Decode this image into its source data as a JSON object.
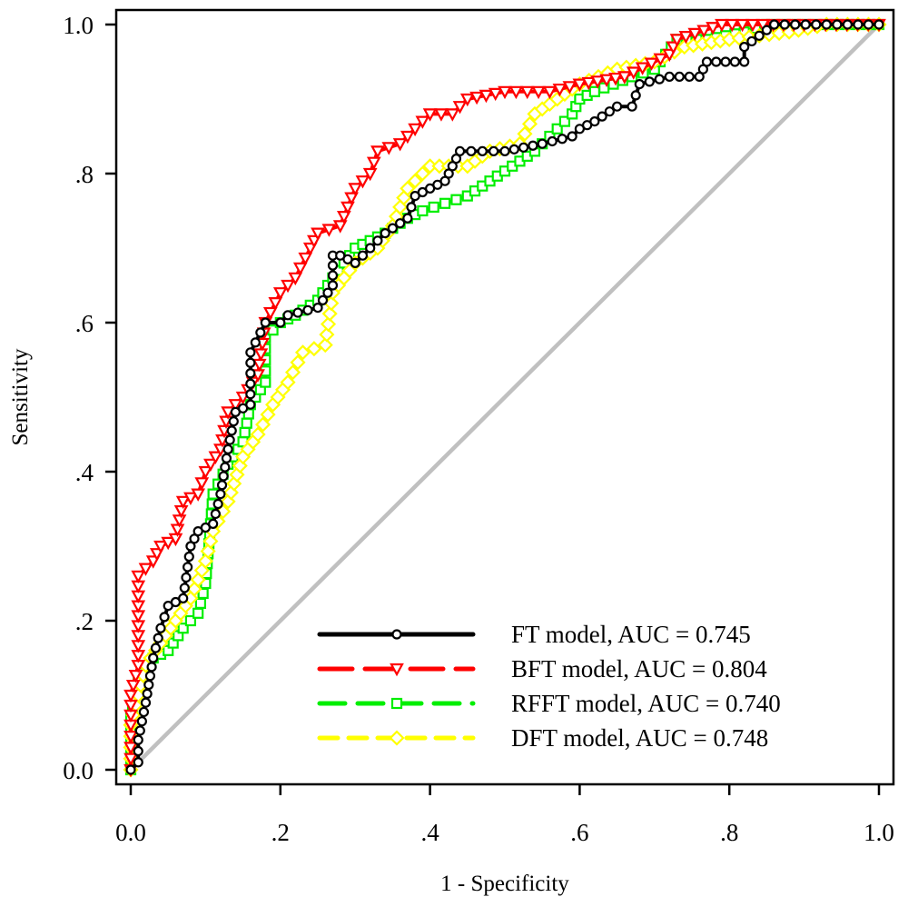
{
  "chart_data": {
    "type": "line",
    "title": "",
    "xlabel": "1 - Specificity",
    "ylabel": "Sensitivity",
    "xlim": [
      0,
      1
    ],
    "ylim": [
      0,
      1
    ],
    "grid": false,
    "legend_position": "bottom-right",
    "x_ticks": [
      {
        "value": 0.0,
        "label": "0.0"
      },
      {
        "value": 0.2,
        "label": ".2"
      },
      {
        "value": 0.4,
        "label": ".4"
      },
      {
        "value": 0.6,
        "label": ".6"
      },
      {
        "value": 0.8,
        "label": ".8"
      },
      {
        "value": 1.0,
        "label": "1.0"
      }
    ],
    "y_ticks": [
      {
        "value": 0.0,
        "label": "0.0"
      },
      {
        "value": 0.2,
        "label": ".2"
      },
      {
        "value": 0.4,
        "label": ".4"
      },
      {
        "value": 0.6,
        "label": ".6"
      },
      {
        "value": 0.8,
        "label": ".8"
      },
      {
        "value": 1.0,
        "label": "1.0"
      }
    ],
    "reference_line": {
      "name": "chance diagonal",
      "color": "#c0c0c0",
      "points": [
        [
          0,
          0
        ],
        [
          1,
          1
        ]
      ]
    },
    "series": [
      {
        "name": "FT model, AUC = 0.745",
        "auc": 0.745,
        "color": "#000000",
        "marker": "circle",
        "dash": "solid",
        "points": [
          [
            0,
            0
          ],
          [
            0.01,
            0.01
          ],
          [
            0.01,
            0.04
          ],
          [
            0.02,
            0.09
          ],
          [
            0.03,
            0.15
          ],
          [
            0.04,
            0.19
          ],
          [
            0.05,
            0.22
          ],
          [
            0.07,
            0.23
          ],
          [
            0.08,
            0.3
          ],
          [
            0.09,
            0.32
          ],
          [
            0.11,
            0.33
          ],
          [
            0.12,
            0.37
          ],
          [
            0.13,
            0.43
          ],
          [
            0.14,
            0.48
          ],
          [
            0.16,
            0.49
          ],
          [
            0.16,
            0.56
          ],
          [
            0.18,
            0.6
          ],
          [
            0.2,
            0.6
          ],
          [
            0.21,
            0.61
          ],
          [
            0.25,
            0.62
          ],
          [
            0.27,
            0.65
          ],
          [
            0.27,
            0.69
          ],
          [
            0.28,
            0.69
          ],
          [
            0.3,
            0.68
          ],
          [
            0.34,
            0.72
          ],
          [
            0.37,
            0.74
          ],
          [
            0.38,
            0.77
          ],
          [
            0.4,
            0.78
          ],
          [
            0.42,
            0.79
          ],
          [
            0.43,
            0.81
          ],
          [
            0.44,
            0.83
          ],
          [
            0.5,
            0.83
          ],
          [
            0.55,
            0.84
          ],
          [
            0.59,
            0.85
          ],
          [
            0.6,
            0.86
          ],
          [
            0.62,
            0.87
          ],
          [
            0.65,
            0.89
          ],
          [
            0.67,
            0.89
          ],
          [
            0.68,
            0.92
          ],
          [
            0.72,
            0.93
          ],
          [
            0.76,
            0.93
          ],
          [
            0.77,
            0.95
          ],
          [
            0.82,
            0.95
          ],
          [
            0.82,
            0.97
          ],
          [
            0.86,
            1.0
          ],
          [
            1,
            1
          ]
        ]
      },
      {
        "name": "BFT model, AUC = 0.804",
        "auc": 0.804,
        "color": "#ff0000",
        "marker": "triangle-down",
        "dash": "long-dash",
        "points": [
          [
            0,
            0
          ],
          [
            0,
            0.06
          ],
          [
            0,
            0.1
          ],
          [
            0.01,
            0.14
          ],
          [
            0.01,
            0.26
          ],
          [
            0.02,
            0.27
          ],
          [
            0.03,
            0.28
          ],
          [
            0.04,
            0.3
          ],
          [
            0.06,
            0.31
          ],
          [
            0.07,
            0.36
          ],
          [
            0.09,
            0.37
          ],
          [
            0.1,
            0.4
          ],
          [
            0.12,
            0.43
          ],
          [
            0.13,
            0.48
          ],
          [
            0.15,
            0.5
          ],
          [
            0.17,
            0.53
          ],
          [
            0.18,
            0.6
          ],
          [
            0.2,
            0.64
          ],
          [
            0.22,
            0.66
          ],
          [
            0.24,
            0.7
          ],
          [
            0.25,
            0.72
          ],
          [
            0.28,
            0.73
          ],
          [
            0.3,
            0.78
          ],
          [
            0.32,
            0.8
          ],
          [
            0.33,
            0.83
          ],
          [
            0.36,
            0.84
          ],
          [
            0.38,
            0.86
          ],
          [
            0.4,
            0.88
          ],
          [
            0.43,
            0.88
          ],
          [
            0.45,
            0.9
          ],
          [
            0.5,
            0.91
          ],
          [
            0.56,
            0.91
          ],
          [
            0.6,
            0.92
          ],
          [
            0.66,
            0.93
          ],
          [
            0.72,
            0.96
          ],
          [
            0.73,
            0.98
          ],
          [
            0.79,
            1.0
          ],
          [
            0.9,
            1.0
          ],
          [
            1,
            1
          ]
        ]
      },
      {
        "name": "RFFT model, AUC = 0.740",
        "auc": 0.74,
        "color": "#00ee00",
        "marker": "square",
        "dash": "medium-dash",
        "points": [
          [
            0,
            0
          ],
          [
            0,
            0.07
          ],
          [
            0.01,
            0.12
          ],
          [
            0.03,
            0.15
          ],
          [
            0.05,
            0.16
          ],
          [
            0.07,
            0.19
          ],
          [
            0.09,
            0.21
          ],
          [
            0.1,
            0.25
          ],
          [
            0.11,
            0.37
          ],
          [
            0.13,
            0.41
          ],
          [
            0.15,
            0.44
          ],
          [
            0.16,
            0.49
          ],
          [
            0.18,
            0.52
          ],
          [
            0.18,
            0.58
          ],
          [
            0.2,
            0.6
          ],
          [
            0.22,
            0.61
          ],
          [
            0.25,
            0.63
          ],
          [
            0.27,
            0.66
          ],
          [
            0.3,
            0.7
          ],
          [
            0.32,
            0.71
          ],
          [
            0.34,
            0.72
          ],
          [
            0.37,
            0.74
          ],
          [
            0.39,
            0.75
          ],
          [
            0.42,
            0.76
          ],
          [
            0.45,
            0.77
          ],
          [
            0.48,
            0.79
          ],
          [
            0.51,
            0.81
          ],
          [
            0.54,
            0.83
          ],
          [
            0.57,
            0.86
          ],
          [
            0.59,
            0.88
          ],
          [
            0.6,
            0.9
          ],
          [
            0.62,
            0.91
          ],
          [
            0.67,
            0.93
          ],
          [
            0.7,
            0.94
          ],
          [
            0.73,
            0.98
          ],
          [
            0.77,
            0.98
          ],
          [
            0.82,
            0.99
          ],
          [
            0.85,
            1.0
          ],
          [
            1,
            1
          ]
        ]
      },
      {
        "name": "DFT model, AUC = 0.748",
        "auc": 0.748,
        "color": "#ffff00",
        "marker": "diamond",
        "dash": "short-dash",
        "points": [
          [
            0,
            0
          ],
          [
            0,
            0.06
          ],
          [
            0.01,
            0.1
          ],
          [
            0.02,
            0.14
          ],
          [
            0.04,
            0.17
          ],
          [
            0.06,
            0.2
          ],
          [
            0.08,
            0.23
          ],
          [
            0.1,
            0.28
          ],
          [
            0.11,
            0.32
          ],
          [
            0.13,
            0.36
          ],
          [
            0.15,
            0.42
          ],
          [
            0.17,
            0.45
          ],
          [
            0.19,
            0.49
          ],
          [
            0.21,
            0.52
          ],
          [
            0.23,
            0.56
          ],
          [
            0.26,
            0.57
          ],
          [
            0.27,
            0.64
          ],
          [
            0.3,
            0.68
          ],
          [
            0.33,
            0.7
          ],
          [
            0.35,
            0.73
          ],
          [
            0.37,
            0.78
          ],
          [
            0.4,
            0.81
          ],
          [
            0.45,
            0.81
          ],
          [
            0.48,
            0.83
          ],
          [
            0.52,
            0.84
          ],
          [
            0.54,
            0.88
          ],
          [
            0.57,
            0.9
          ],
          [
            0.6,
            0.92
          ],
          [
            0.65,
            0.94
          ],
          [
            0.7,
            0.95
          ],
          [
            0.74,
            0.97
          ],
          [
            0.8,
            0.98
          ],
          [
            0.88,
            0.99
          ],
          [
            0.93,
            1.0
          ],
          [
            1,
            1
          ]
        ]
      }
    ]
  }
}
